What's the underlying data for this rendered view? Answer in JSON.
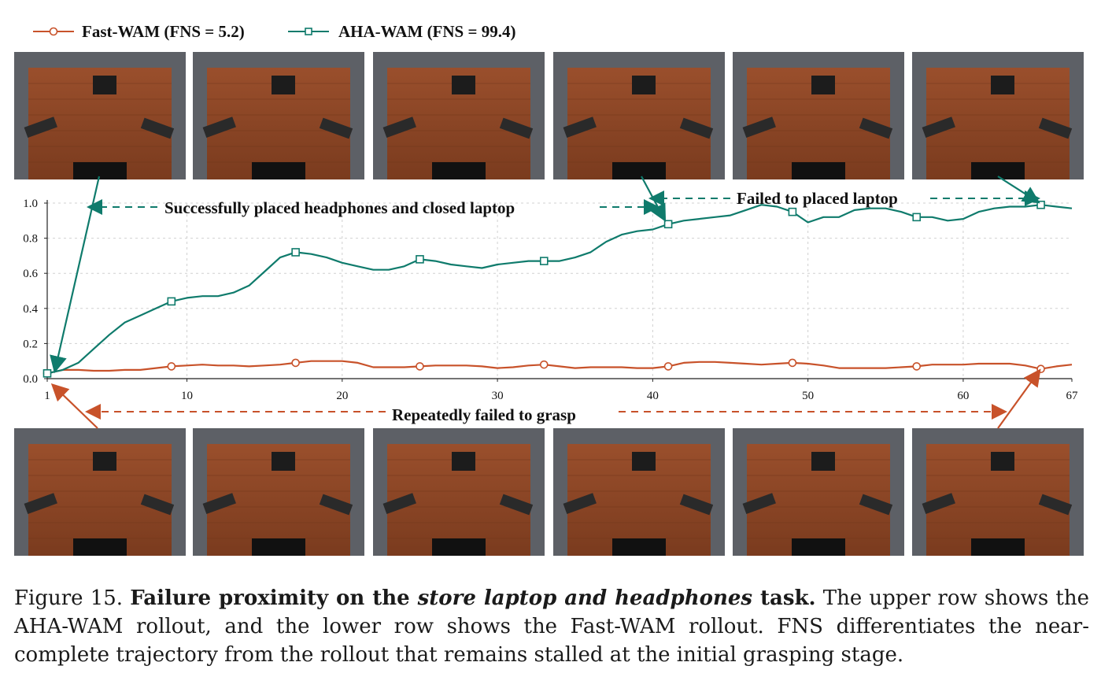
{
  "chart_data": {
    "type": "line",
    "title": "",
    "xlabel": "",
    "ylabel": "",
    "xlim": [
      1,
      67
    ],
    "ylim": [
      0,
      1.0
    ],
    "xticks": [
      1,
      10,
      20,
      30,
      40,
      50,
      60,
      67
    ],
    "yticks": [
      0.0,
      0.2,
      0.4,
      0.6,
      0.8,
      1.0
    ],
    "xtick_labels": [
      "1",
      "10",
      "20",
      "30",
      "40",
      "50",
      "60",
      "67"
    ],
    "ytick_labels": [
      "0.0",
      "0.2",
      "0.4",
      "0.6",
      "0.8",
      "1.0"
    ],
    "grid": true,
    "legend_position": "top-left, above chart",
    "series": [
      {
        "name": "Fast-WAM (FNS = 5.2)",
        "color": "#c8522a",
        "marker": "circle",
        "marker_x": [
          1,
          9,
          17,
          25,
          33,
          41,
          49,
          57,
          65
        ],
        "x": [
          1,
          2,
          3,
          4,
          5,
          6,
          7,
          8,
          9,
          10,
          11,
          12,
          13,
          14,
          15,
          16,
          17,
          18,
          19,
          20,
          21,
          22,
          23,
          24,
          25,
          26,
          27,
          28,
          29,
          30,
          31,
          32,
          33,
          34,
          35,
          36,
          37,
          38,
          39,
          40,
          41,
          42,
          43,
          44,
          45,
          46,
          47,
          48,
          49,
          50,
          51,
          52,
          53,
          54,
          55,
          56,
          57,
          58,
          59,
          60,
          61,
          62,
          63,
          64,
          65,
          66,
          67
        ],
        "values": [
          0.03,
          0.05,
          0.05,
          0.045,
          0.045,
          0.05,
          0.05,
          0.06,
          0.07,
          0.075,
          0.08,
          0.075,
          0.075,
          0.07,
          0.075,
          0.08,
          0.09,
          0.1,
          0.1,
          0.1,
          0.09,
          0.065,
          0.065,
          0.065,
          0.07,
          0.075,
          0.075,
          0.075,
          0.07,
          0.06,
          0.065,
          0.075,
          0.08,
          0.07,
          0.06,
          0.065,
          0.065,
          0.065,
          0.06,
          0.06,
          0.07,
          0.09,
          0.095,
          0.095,
          0.09,
          0.085,
          0.08,
          0.085,
          0.09,
          0.085,
          0.075,
          0.06,
          0.06,
          0.06,
          0.06,
          0.065,
          0.07,
          0.08,
          0.08,
          0.08,
          0.085,
          0.085,
          0.085,
          0.075,
          0.055,
          0.07,
          0.08
        ]
      },
      {
        "name": "AHA-WAM (FNS = 99.4)",
        "color": "#0f7b6c",
        "marker": "square",
        "marker_x": [
          1,
          9,
          17,
          25,
          33,
          41,
          49,
          57,
          65
        ],
        "x": [
          1,
          2,
          3,
          4,
          5,
          6,
          7,
          8,
          9,
          10,
          11,
          12,
          13,
          14,
          15,
          16,
          17,
          18,
          19,
          20,
          21,
          22,
          23,
          24,
          25,
          26,
          27,
          28,
          29,
          30,
          31,
          32,
          33,
          34,
          35,
          36,
          37,
          38,
          39,
          40,
          41,
          42,
          43,
          44,
          45,
          46,
          47,
          48,
          49,
          50,
          51,
          52,
          53,
          54,
          55,
          56,
          57,
          58,
          59,
          60,
          61,
          62,
          63,
          64,
          65,
          66,
          67
        ],
        "values": [
          0.03,
          0.05,
          0.09,
          0.17,
          0.25,
          0.32,
          0.36,
          0.4,
          0.44,
          0.46,
          0.47,
          0.47,
          0.49,
          0.53,
          0.61,
          0.69,
          0.72,
          0.71,
          0.69,
          0.66,
          0.64,
          0.62,
          0.62,
          0.64,
          0.68,
          0.67,
          0.65,
          0.64,
          0.63,
          0.65,
          0.66,
          0.67,
          0.67,
          0.67,
          0.69,
          0.72,
          0.78,
          0.82,
          0.84,
          0.85,
          0.88,
          0.9,
          0.91,
          0.92,
          0.93,
          0.96,
          0.99,
          0.98,
          0.95,
          0.89,
          0.92,
          0.92,
          0.96,
          0.97,
          0.97,
          0.95,
          0.92,
          0.92,
          0.9,
          0.91,
          0.95,
          0.97,
          0.98,
          0.98,
          0.99,
          0.98,
          0.97
        ]
      }
    ],
    "annotations": [
      {
        "text": "Successfully placed headphones and closed laptop",
        "color": "#0f7b6c"
      },
      {
        "text": "Failed to placed laptop",
        "color": "#0f7b6c"
      },
      {
        "text": "Repeatedly failed to grasp",
        "color": "#c8522a"
      }
    ]
  },
  "upper_row": {
    "frame_label": "AHA-WAM rollout frames",
    "count": 6
  },
  "lower_row": {
    "frame_label": "Fast-WAM rollout frames",
    "count": 6
  },
  "caption": {
    "figure_label": "Figure 15.",
    "bold_prefix": "Failure proximity on the ",
    "italic": "store laptop and headphones",
    "bold_suffix": " task.",
    "body": " The upper row shows the AHA-WAM rollout, and the lower row shows the Fast-WAM rollout. FNS differentiates the near-complete trajectory from the rollout that remains stalled at the initial grasping stage."
  }
}
